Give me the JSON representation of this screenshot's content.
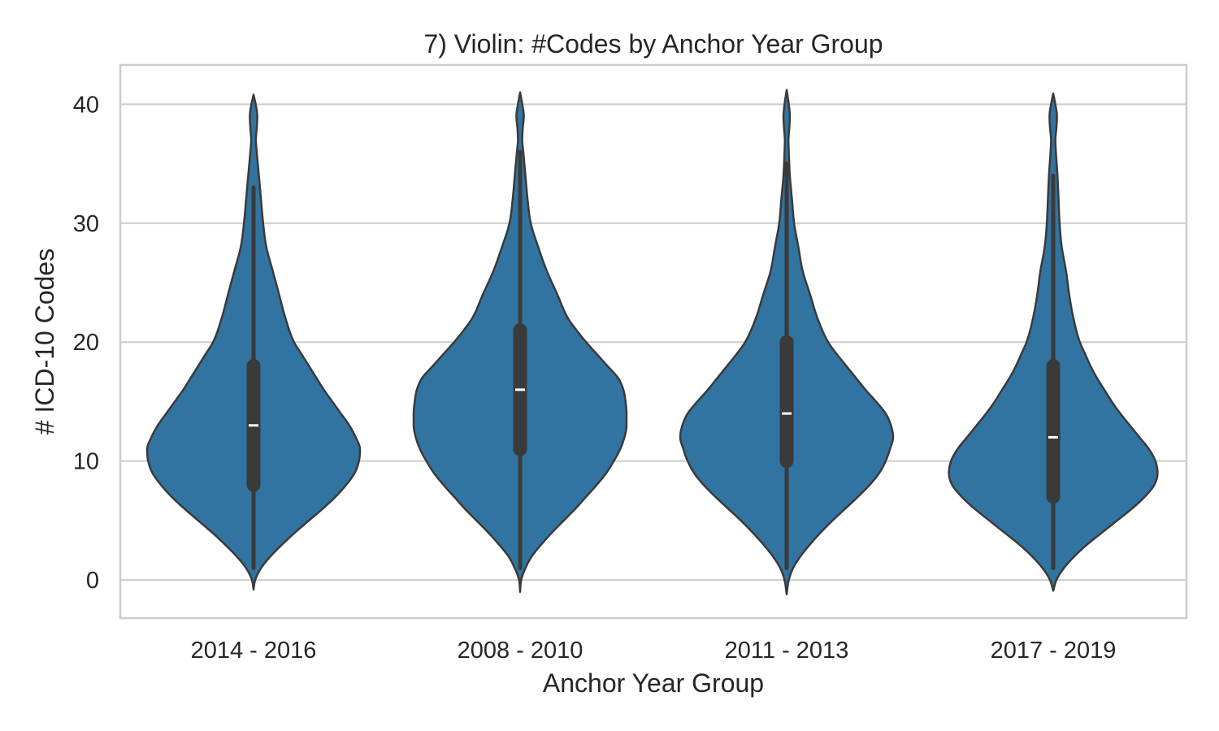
{
  "chart_data": {
    "type": "violin",
    "title": "7) Violin: #Codes by Anchor Year Group",
    "xlabel": "Anchor Year Group",
    "ylabel": "# ICD-10 Codes",
    "ylim": [
      -3.2,
      43.3
    ],
    "yticks": [
      0,
      10,
      20,
      30,
      40
    ],
    "grid": "horizontal",
    "colors": {
      "fill": "#3274a1",
      "edge": "#3a3a3a",
      "box": "#3a3a3a",
      "median": "#ffffff",
      "grid": "#cccccc",
      "frame": "#cccccc"
    },
    "categories": [
      "2014 - 2016",
      "2008 - 2010",
      "2011 - 2013",
      "2017 - 2019"
    ],
    "violins": [
      {
        "category": "2014 - 2016",
        "min": 1,
        "q1": 8,
        "median": 13,
        "q3": 18,
        "max": 33,
        "range": [
          -0.8,
          40.8
        ],
        "profile": [
          [
            -0.8,
            0
          ],
          [
            0,
            0.015
          ],
          [
            1,
            0.07
          ],
          [
            2,
            0.16
          ],
          [
            3,
            0.27
          ],
          [
            4,
            0.39
          ],
          [
            5,
            0.52
          ],
          [
            6,
            0.65
          ],
          [
            7,
            0.77
          ],
          [
            8,
            0.87
          ],
          [
            9,
            0.95
          ],
          [
            10,
            0.99
          ],
          [
            11,
            1.0
          ],
          [
            12,
            0.96
          ],
          [
            13,
            0.9
          ],
          [
            14,
            0.82
          ],
          [
            15,
            0.74
          ],
          [
            16,
            0.66
          ],
          [
            17,
            0.59
          ],
          [
            18,
            0.52
          ],
          [
            19,
            0.45
          ],
          [
            20,
            0.38
          ],
          [
            22,
            0.3
          ],
          [
            24,
            0.24
          ],
          [
            26,
            0.18
          ],
          [
            28,
            0.12
          ],
          [
            30,
            0.09
          ],
          [
            32,
            0.07
          ],
          [
            34,
            0.05
          ],
          [
            36,
            0.03
          ],
          [
            37,
            0.022
          ],
          [
            38,
            0.03
          ],
          [
            39,
            0.035
          ],
          [
            40,
            0.02
          ],
          [
            40.8,
            0
          ]
        ]
      },
      {
        "category": "2008 - 2010",
        "min": 1,
        "q1": 11,
        "median": 16,
        "q3": 21,
        "max": 36,
        "range": [
          -1.0,
          41.0
        ],
        "profile": [
          [
            -1,
            0
          ],
          [
            0,
            0.01
          ],
          [
            1,
            0.05
          ],
          [
            2,
            0.11
          ],
          [
            3,
            0.2
          ],
          [
            4,
            0.3
          ],
          [
            5,
            0.41
          ],
          [
            6,
            0.52
          ],
          [
            7,
            0.62
          ],
          [
            8,
            0.72
          ],
          [
            9,
            0.81
          ],
          [
            10,
            0.88
          ],
          [
            11,
            0.94
          ],
          [
            12,
            0.98
          ],
          [
            13,
            1.0
          ],
          [
            14,
            1.0
          ],
          [
            15,
            0.99
          ],
          [
            16,
            0.97
          ],
          [
            17,
            0.92
          ],
          [
            18,
            0.82
          ],
          [
            19,
            0.72
          ],
          [
            20,
            0.62
          ],
          [
            21,
            0.53
          ],
          [
            22,
            0.45
          ],
          [
            24,
            0.35
          ],
          [
            26,
            0.25
          ],
          [
            28,
            0.17
          ],
          [
            30,
            0.1
          ],
          [
            32,
            0.07
          ],
          [
            34,
            0.05
          ],
          [
            36,
            0.03
          ],
          [
            37,
            0.02
          ],
          [
            38,
            0.025
          ],
          [
            39,
            0.035
          ],
          [
            40,
            0.02
          ],
          [
            41,
            0
          ]
        ]
      },
      {
        "category": "2011 - 2013",
        "min": 1,
        "q1": 10,
        "median": 14,
        "q3": 20,
        "max": 35,
        "range": [
          -1.2,
          41.2
        ],
        "profile": [
          [
            -1.2,
            0
          ],
          [
            0,
            0.02
          ],
          [
            1,
            0.06
          ],
          [
            2,
            0.13
          ],
          [
            3,
            0.22
          ],
          [
            4,
            0.32
          ],
          [
            5,
            0.43
          ],
          [
            6,
            0.55
          ],
          [
            7,
            0.67
          ],
          [
            8,
            0.78
          ],
          [
            9,
            0.87
          ],
          [
            10,
            0.93
          ],
          [
            11,
            0.97
          ],
          [
            12,
            1.0
          ],
          [
            13,
            0.98
          ],
          [
            14,
            0.93
          ],
          [
            15,
            0.84
          ],
          [
            16,
            0.74
          ],
          [
            17,
            0.65
          ],
          [
            18,
            0.56
          ],
          [
            19,
            0.47
          ],
          [
            20,
            0.39
          ],
          [
            22,
            0.29
          ],
          [
            24,
            0.22
          ],
          [
            26,
            0.15
          ],
          [
            28,
            0.11
          ],
          [
            30,
            0.07
          ],
          [
            32,
            0.05
          ],
          [
            34,
            0.03
          ],
          [
            36,
            0.02
          ],
          [
            37,
            0.017
          ],
          [
            38,
            0.025
          ],
          [
            39,
            0.03
          ],
          [
            40,
            0.02
          ],
          [
            41.2,
            0
          ]
        ]
      },
      {
        "category": "2017 - 2019",
        "min": 1,
        "q1": 7,
        "median": 12,
        "q3": 18,
        "max": 34,
        "range": [
          -0.9,
          40.9
        ],
        "profile": [
          [
            -0.9,
            0
          ],
          [
            0,
            0.03
          ],
          [
            1,
            0.1
          ],
          [
            2,
            0.2
          ],
          [
            3,
            0.32
          ],
          [
            4,
            0.46
          ],
          [
            5,
            0.6
          ],
          [
            6,
            0.74
          ],
          [
            7,
            0.86
          ],
          [
            8,
            0.95
          ],
          [
            9,
            0.98
          ],
          [
            10,
            0.96
          ],
          [
            11,
            0.9
          ],
          [
            12,
            0.81
          ],
          [
            13,
            0.72
          ],
          [
            14,
            0.63
          ],
          [
            15,
            0.55
          ],
          [
            16,
            0.48
          ],
          [
            17,
            0.41
          ],
          [
            18,
            0.35
          ],
          [
            19,
            0.3
          ],
          [
            20,
            0.25
          ],
          [
            22,
            0.19
          ],
          [
            24,
            0.15
          ],
          [
            26,
            0.12
          ],
          [
            28,
            0.08
          ],
          [
            30,
            0.06
          ],
          [
            32,
            0.05
          ],
          [
            34,
            0.04
          ],
          [
            36,
            0.025
          ],
          [
            37,
            0.02
          ],
          [
            38,
            0.03
          ],
          [
            39,
            0.035
          ],
          [
            40,
            0.02
          ],
          [
            40.9,
            0
          ]
        ]
      }
    ]
  }
}
